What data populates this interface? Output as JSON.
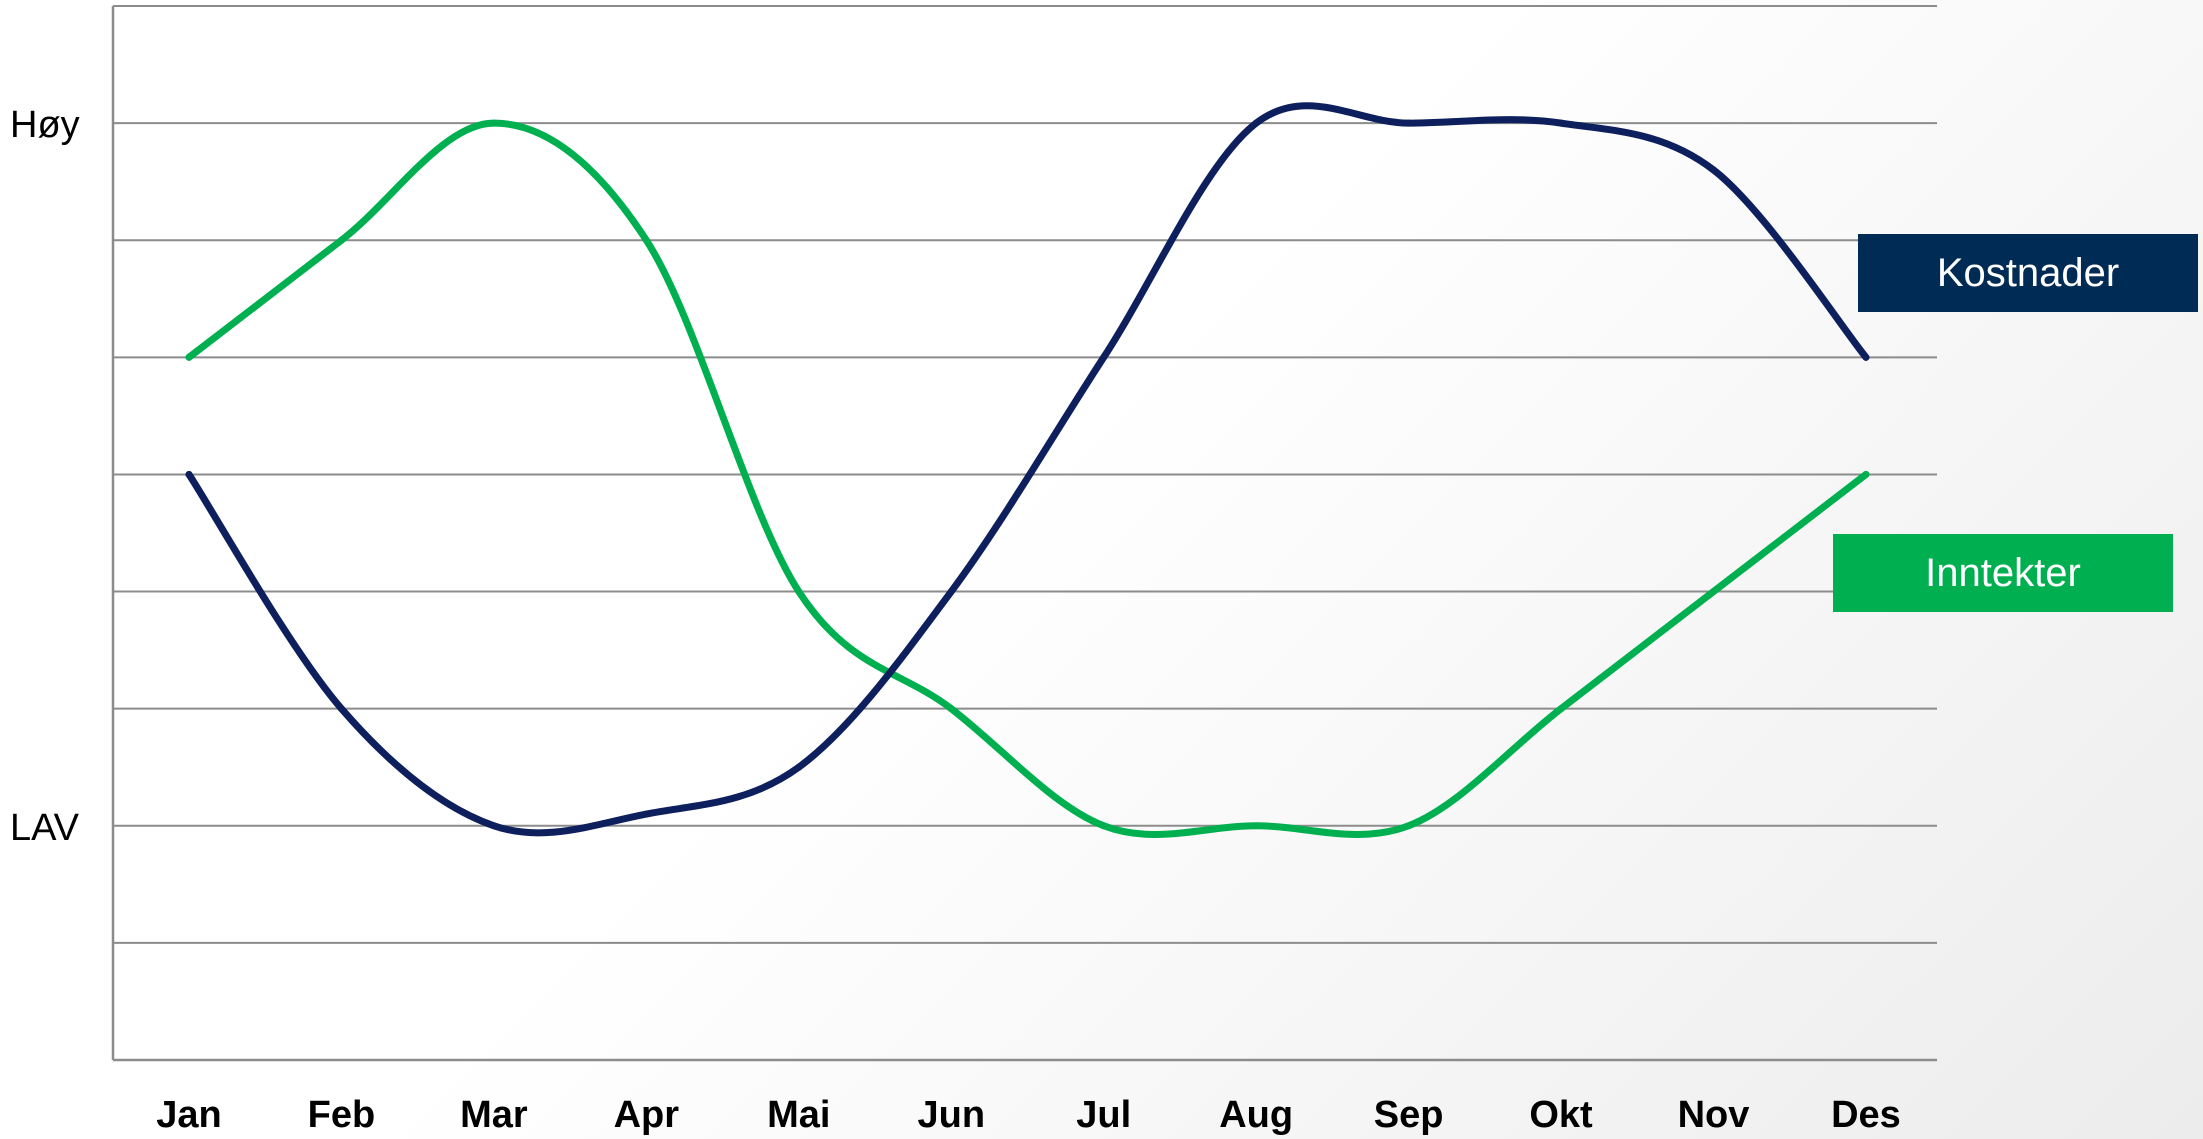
{
  "chart_data": {
    "type": "line",
    "categories": [
      "Jan",
      "Feb",
      "Mar",
      "Apr",
      "Mai",
      "Jun",
      "Jul",
      "Aug",
      "Sep",
      "Okt",
      "Nov",
      "Des"
    ],
    "ylim": [
      0,
      9
    ],
    "y_tick_labels": [
      {
        "label": "LAV",
        "value": 2
      },
      {
        "label": "Høy",
        "value": 8
      }
    ],
    "grid": true,
    "legend_placement": "right",
    "series": [
      {
        "name": "Kostnader",
        "color": "#0d1f5c",
        "legend_color": "#002b55",
        "values": [
          5,
          3,
          2,
          2.1,
          2.5,
          4,
          6,
          8,
          8,
          8,
          7.6,
          6
        ]
      },
      {
        "name": "Inntekter",
        "color": "#00b050",
        "legend_color": "#00b050",
        "values": [
          6,
          7,
          8,
          7,
          4,
          3,
          2,
          2,
          2,
          3,
          4,
          5
        ]
      }
    ]
  }
}
